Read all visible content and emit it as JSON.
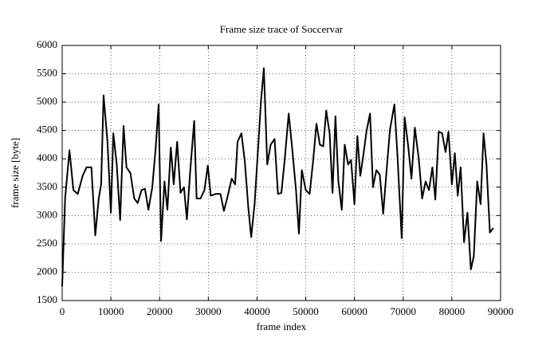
{
  "chart_data": {
    "type": "line",
    "title": "Frame size trace of Soccervar",
    "x_label": "frame index",
    "y_label": "frame size [byte]",
    "xlim": [
      0,
      90000
    ],
    "xticks": [
      0,
      10000,
      20000,
      30000,
      40000,
      50000,
      60000,
      70000,
      80000,
      90000
    ],
    "ylim": [
      1500,
      6000
    ],
    "yticks": [
      1500,
      2000,
      2500,
      3000,
      3500,
      4000,
      4500,
      5000,
      5500,
      6000
    ],
    "grid": true,
    "x": [
      0,
      600,
      1500,
      2300,
      3200,
      4200,
      5000,
      6000,
      6800,
      7500,
      8000,
      8500,
      9300,
      10000,
      10500,
      11200,
      11900,
      12600,
      13200,
      14000,
      14800,
      15500,
      16300,
      17000,
      17700,
      18500,
      19200,
      19800,
      20300,
      21000,
      21600,
      22300,
      22900,
      23600,
      24300,
      25000,
      25600,
      26300,
      27100,
      27600,
      28400,
      29200,
      29900,
      30500,
      31500,
      32500,
      33200,
      34000,
      34800,
      35500,
      36000,
      36800,
      37500,
      38200,
      38800,
      39500,
      40300,
      40800,
      41400,
      42100,
      42800,
      43600,
      44300,
      45000,
      45700,
      46500,
      47200,
      48000,
      48600,
      49200,
      50000,
      50800,
      51500,
      52200,
      52900,
      53600,
      54200,
      54900,
      55500,
      56100,
      56700,
      57400,
      58000,
      58700,
      59300,
      60000,
      60600,
      61200,
      61800,
      62500,
      63200,
      63800,
      64500,
      65200,
      65900,
      66600,
      67300,
      68200,
      68800,
      69700,
      70300,
      71000,
      71700,
      72400,
      73200,
      73900,
      74600,
      75300,
      76000,
      76600,
      77300,
      78000,
      78700,
      79300,
      80000,
      80600,
      81200,
      81800,
      82500,
      83200,
      83900,
      84500,
      85200,
      85900,
      86500,
      87100,
      87800,
      88500
    ],
    "series": [
      {
        "name": "frame size",
        "color": "#000000",
        "values": [
          1750,
          3300,
          4150,
          3450,
          3380,
          3700,
          3850,
          3850,
          2650,
          3300,
          3550,
          5120,
          4300,
          3050,
          4450,
          3900,
          2920,
          4580,
          3850,
          3750,
          3300,
          3220,
          3450,
          3470,
          3100,
          3500,
          4200,
          4960,
          2550,
          3600,
          3100,
          4200,
          3550,
          4300,
          3400,
          3500,
          2930,
          3800,
          4670,
          3300,
          3300,
          3450,
          3880,
          3350,
          3380,
          3380,
          3080,
          3350,
          3650,
          3550,
          4300,
          4450,
          3950,
          3150,
          2620,
          3200,
          4300,
          5000,
          5600,
          3900,
          4250,
          4350,
          3380,
          3400,
          4000,
          4800,
          4200,
          3450,
          2680,
          3800,
          3450,
          3380,
          3950,
          4620,
          4250,
          4220,
          4850,
          4450,
          3400,
          4750,
          3600,
          3100,
          4250,
          3900,
          3980,
          3200,
          4400,
          3700,
          4050,
          4500,
          4800,
          3500,
          3800,
          3720,
          3030,
          3800,
          4520,
          4960,
          4100,
          2600,
          4730,
          4250,
          3650,
          4550,
          4000,
          3300,
          3600,
          3450,
          3850,
          3280,
          4480,
          4450,
          4120,
          4480,
          3550,
          4100,
          3350,
          3850,
          2530,
          3050,
          2050,
          2280,
          3600,
          3200,
          4450,
          3900,
          2700,
          2780
        ]
      }
    ]
  }
}
